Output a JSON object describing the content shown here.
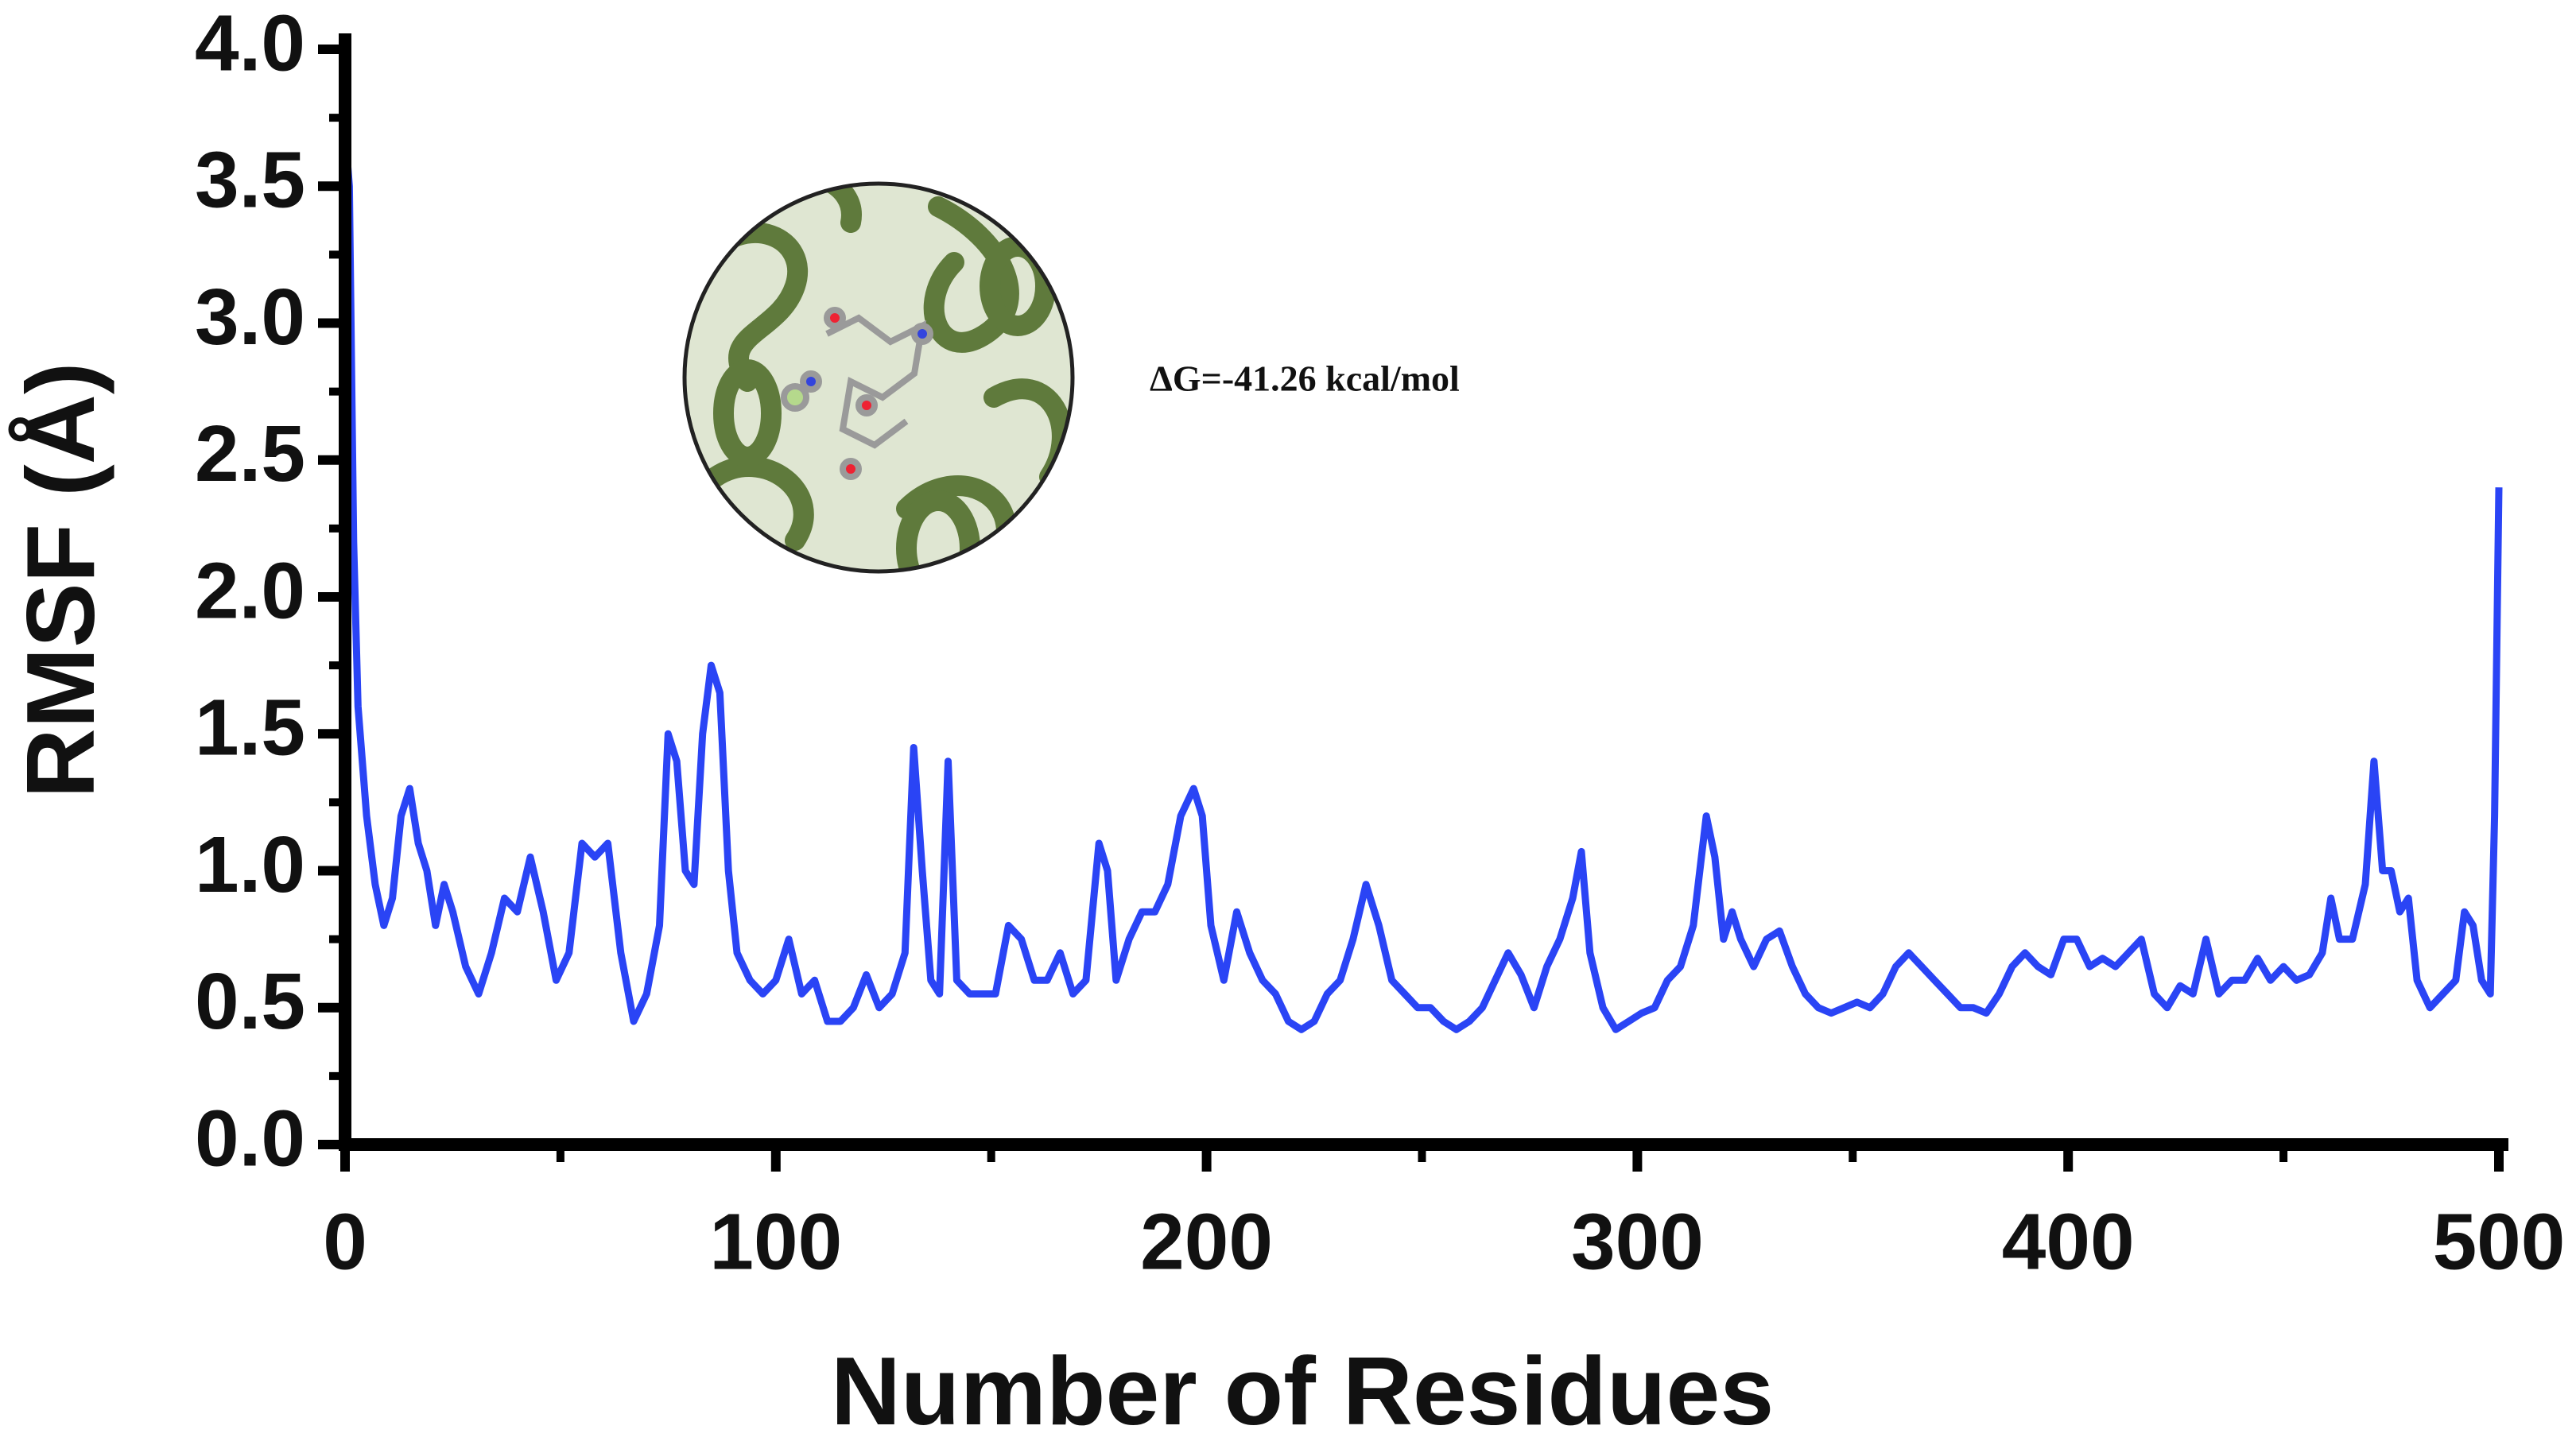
{
  "chart_data": {
    "type": "line",
    "xlabel": "Number of Residues",
    "ylabel": "RMSF (Å)",
    "annotation": "ΔG=-41.26 kcal/mol",
    "xlim": [
      0,
      500
    ],
    "ylim": [
      0,
      4
    ],
    "xticks": [
      0,
      100,
      200,
      300,
      400,
      500
    ],
    "yticks": [
      {
        "value": 0,
        "label": "0.0"
      },
      0.5,
      {
        "value": 1,
        "label": "1.0"
      },
      1.5,
      {
        "value": 2,
        "label": "2.0"
      },
      2.5,
      {
        "value": 3,
        "label": "3.0"
      },
      3.5,
      {
        "value": 4,
        "label": "4.0"
      }
    ],
    "x": [
      0,
      1,
      2,
      3,
      5,
      7,
      9,
      11,
      13,
      15,
      17,
      19,
      21,
      23,
      25,
      28,
      31,
      34,
      37,
      40,
      43,
      46,
      49,
      52,
      55,
      58,
      61,
      64,
      67,
      70,
      73,
      75,
      77,
      79,
      81,
      83,
      85,
      87,
      89,
      91,
      94,
      97,
      100,
      103,
      106,
      109,
      112,
      115,
      118,
      121,
      124,
      127,
      130,
      132,
      134,
      136,
      138,
      140,
      142,
      145,
      148,
      151,
      154,
      157,
      160,
      163,
      166,
      169,
      172,
      175,
      177,
      179,
      182,
      185,
      188,
      191,
      194,
      197,
      199,
      201,
      204,
      207,
      210,
      213,
      216,
      219,
      222,
      225,
      228,
      231,
      234,
      237,
      240,
      243,
      246,
      249,
      252,
      255,
      258,
      261,
      264,
      267,
      270,
      273,
      276,
      279,
      282,
      285,
      287,
      289,
      292,
      295,
      298,
      301,
      304,
      307,
      310,
      313,
      316,
      318,
      320,
      322,
      324,
      327,
      330,
      333,
      336,
      339,
      342,
      345,
      348,
      351,
      354,
      357,
      360,
      363,
      366,
      369,
      372,
      375,
      378,
      381,
      384,
      387,
      390,
      393,
      396,
      399,
      402,
      405,
      408,
      411,
      414,
      417,
      420,
      423,
      426,
      429,
      432,
      435,
      438,
      441,
      444,
      447,
      450,
      453,
      456,
      459,
      461,
      463,
      466,
      469,
      471,
      473,
      475,
      477,
      479,
      481,
      484,
      487,
      490,
      492,
      494,
      496,
      498,
      499,
      500
    ],
    "series": [
      {
        "color": "#2a44f5",
        "values": [
          3.7,
          3.5,
          2.2,
          1.6,
          1.2,
          0.95,
          0.8,
          0.9,
          1.2,
          1.3,
          1.1,
          1.0,
          0.8,
          0.95,
          0.85,
          0.65,
          0.55,
          0.7,
          0.9,
          0.85,
          1.05,
          0.85,
          0.6,
          0.7,
          1.1,
          1.05,
          1.1,
          0.7,
          0.45,
          0.55,
          0.8,
          1.5,
          1.4,
          1.0,
          0.95,
          1.5,
          1.75,
          1.65,
          1.0,
          0.7,
          0.6,
          0.55,
          0.6,
          0.75,
          0.55,
          0.6,
          0.45,
          0.45,
          0.5,
          0.62,
          0.5,
          0.55,
          0.7,
          1.45,
          1.0,
          0.6,
          0.55,
          1.4,
          0.6,
          0.55,
          0.55,
          0.55,
          0.8,
          0.75,
          0.6,
          0.6,
          0.7,
          0.55,
          0.6,
          1.1,
          1.0,
          0.6,
          0.75,
          0.85,
          0.85,
          0.95,
          1.2,
          1.3,
          1.2,
          0.8,
          0.6,
          0.85,
          0.7,
          0.6,
          0.55,
          0.45,
          0.42,
          0.45,
          0.55,
          0.6,
          0.75,
          0.95,
          0.8,
          0.6,
          0.55,
          0.5,
          0.5,
          0.45,
          0.42,
          0.45,
          0.5,
          0.6,
          0.7,
          0.62,
          0.5,
          0.65,
          0.75,
          0.9,
          1.07,
          0.7,
          0.5,
          0.42,
          0.45,
          0.48,
          0.5,
          0.6,
          0.65,
          0.8,
          1.2,
          1.05,
          0.75,
          0.85,
          0.75,
          0.65,
          0.75,
          0.78,
          0.65,
          0.55,
          0.5,
          0.48,
          0.5,
          0.52,
          0.5,
          0.55,
          0.65,
          0.7,
          0.65,
          0.6,
          0.55,
          0.5,
          0.5,
          0.48,
          0.55,
          0.65,
          0.7,
          0.65,
          0.62,
          0.75,
          0.75,
          0.65,
          0.68,
          0.65,
          0.7,
          0.75,
          0.55,
          0.5,
          0.58,
          0.55,
          0.75,
          0.55,
          0.6,
          0.6,
          0.68,
          0.6,
          0.65,
          0.6,
          0.62,
          0.7,
          0.9,
          0.75,
          0.75,
          0.95,
          1.4,
          1.0,
          1.0,
          0.85,
          0.9,
          0.6,
          0.5,
          0.55,
          0.6,
          0.85,
          0.8,
          0.6,
          0.55,
          1.2,
          2.4
        ]
      }
    ]
  }
}
